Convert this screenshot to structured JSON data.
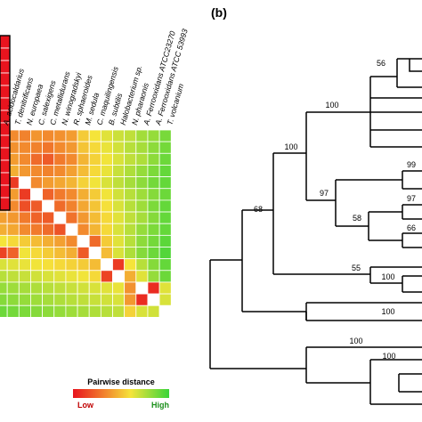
{
  "panel_b_label": "(b)",
  "species": [
    "A. acidocaldarius",
    "T. denitrificans",
    "N. europaea",
    "C. salexigens",
    "C. metallidurans",
    "N. winogradskyi",
    "R. sphaeroides",
    "M. sedula",
    "C. maquilingensis",
    "B. subtilis",
    "Halobacterium sp.",
    "N. pharaonis",
    "A. Ferrooxidans ATCC23270",
    "A. Ferrooxidans ATCC 53993",
    "T. volcanium"
  ],
  "legend": {
    "title": "Pairwise distance",
    "low": "Low",
    "high": "High"
  },
  "colors": {
    "low": "#e8141e",
    "mid_orange": "#f28a2e",
    "mid_yellow": "#f5e43a",
    "high": "#3ad43a",
    "diagonal": "#ffffff",
    "highlight_box": "#000000"
  },
  "heatmap": {
    "visible_rows": 13,
    "visible_cols": 15,
    "cells": [
      [
        0.05,
        0.3,
        0.28,
        0.33,
        0.3,
        0.32,
        0.35,
        0.48,
        0.55,
        0.6,
        0.65,
        0.68,
        0.75,
        0.78,
        0.85
      ],
      [
        0.05,
        0.32,
        0.3,
        0.28,
        0.25,
        0.3,
        0.34,
        0.46,
        0.52,
        0.58,
        0.64,
        0.7,
        0.74,
        0.8,
        0.86
      ],
      [
        0.05,
        0.35,
        0.3,
        0.22,
        0.18,
        0.26,
        0.3,
        0.42,
        0.5,
        0.56,
        0.62,
        0.68,
        0.72,
        0.8,
        0.88
      ],
      [
        0.05,
        0.4,
        0.34,
        0.3,
        0.28,
        0.3,
        0.36,
        0.44,
        0.52,
        0.58,
        0.66,
        0.72,
        0.78,
        0.84,
        0.9
      ],
      [
        0.05,
        0.1,
        "d",
        0.3,
        0.35,
        0.38,
        0.42,
        0.5,
        0.56,
        0.62,
        0.68,
        0.74,
        0.8,
        0.86,
        0.9
      ],
      [
        0.3,
        0.35,
        0.1,
        "d",
        0.2,
        0.26,
        0.3,
        0.4,
        0.48,
        0.56,
        0.64,
        0.7,
        0.76,
        0.82,
        0.88
      ],
      [
        0.32,
        0.3,
        0.15,
        0.18,
        "d",
        0.22,
        0.28,
        0.38,
        0.46,
        0.54,
        0.62,
        0.7,
        0.76,
        0.84,
        0.9
      ],
      [
        0.36,
        0.34,
        0.26,
        0.2,
        0.18,
        "d",
        0.24,
        0.34,
        0.44,
        0.52,
        0.6,
        0.68,
        0.74,
        0.82,
        0.9
      ],
      [
        0.4,
        0.38,
        0.3,
        0.26,
        0.22,
        0.16,
        "d",
        0.3,
        0.42,
        0.52,
        0.62,
        0.7,
        0.78,
        0.84,
        0.9
      ],
      [
        0.55,
        0.52,
        0.48,
        0.44,
        0.4,
        0.36,
        0.3,
        "d",
        0.22,
        0.48,
        0.6,
        0.7,
        0.8,
        0.86,
        0.92
      ],
      [
        0.12,
        0.2,
        0.56,
        0.52,
        0.48,
        0.44,
        0.4,
        0.18,
        "d",
        0.44,
        0.62,
        0.72,
        0.82,
        0.88,
        0.94
      ],
      [
        0.62,
        0.6,
        0.58,
        0.56,
        0.54,
        0.52,
        0.5,
        0.48,
        0.44,
        "d",
        0.1,
        0.55,
        0.7,
        0.82,
        0.9
      ],
      [
        0.7,
        0.68,
        0.66,
        0.64,
        0.62,
        0.6,
        0.58,
        0.56,
        0.52,
        0.12,
        "d",
        0.4,
        0.6,
        0.78,
        0.88
      ]
    ],
    "lower_rows": [
      [
        0.78,
        0.76,
        0.74,
        0.72,
        0.7,
        0.68,
        0.66,
        0.64,
        0.62,
        0.6,
        0.58,
        0.32,
        "d",
        0.06,
        0.6
      ],
      [
        0.82,
        0.8,
        0.78,
        0.76,
        0.74,
        0.72,
        0.7,
        0.68,
        0.66,
        0.64,
        0.62,
        0.34,
        0.06,
        "d",
        0.62
      ],
      [
        0.88,
        0.86,
        0.84,
        0.82,
        0.8,
        0.78,
        0.76,
        0.74,
        0.72,
        0.7,
        0.68,
        0.5,
        0.62,
        0.64,
        "d"
      ]
    ]
  },
  "tree": {
    "bootstrap": [
      "56",
      "100",
      "100",
      "99",
      "97",
      "97",
      "58",
      "66",
      "68",
      "55",
      "100",
      "100",
      "100",
      "100"
    ]
  }
}
